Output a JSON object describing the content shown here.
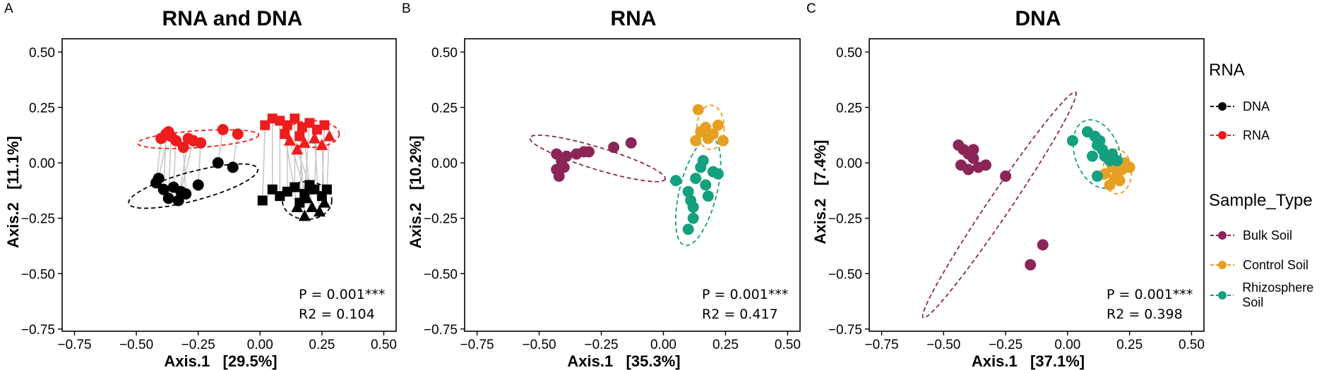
{
  "colors": {
    "dna": "#000000",
    "rna": "#ee1c1c",
    "bulk": "#8b2558",
    "control": "#e5a024",
    "rhizo": "#14a07e",
    "connector": "#c8c8c8"
  },
  "legend": {
    "group_title": "RNA",
    "group_items": [
      {
        "label": "DNA",
        "color_key": "dna"
      },
      {
        "label": "RNA",
        "color_key": "rna"
      }
    ],
    "sample_title": "Sample_Type",
    "sample_items": [
      {
        "label": "Bulk Soil",
        "color_key": "bulk"
      },
      {
        "label": "Control Soil",
        "color_key": "control"
      },
      {
        "label": "Rhizosphere Soil",
        "color_key": "rhizo"
      }
    ]
  },
  "chart_data": [
    {
      "panel_label": "A",
      "type": "scatter",
      "title": "RNA and DNA",
      "xlabel": "Axis.1   [29.5%]",
      "ylabel": "Axis.2   [11.1%]",
      "xlim": [
        -0.8,
        0.55
      ],
      "ylim": [
        -0.76,
        0.56
      ],
      "xticks": [
        -0.75,
        -0.5,
        -0.25,
        0.0,
        0.25,
        0.5
      ],
      "yticks": [
        -0.75,
        -0.5,
        -0.25,
        0.0,
        0.25,
        0.5
      ],
      "tick_labels": [
        "−0.75",
        "−0.50",
        "−0.25",
        "0.00",
        "0.25",
        "0.50"
      ],
      "stat_p": "P = 0.001***",
      "stat_r2": "R2 = 0.104",
      "series": [
        {
          "name": "DNA",
          "color_key": "dna",
          "shape": "circle",
          "points": [
            [
              -0.42,
              -0.09
            ],
            [
              -0.39,
              -0.12
            ],
            [
              -0.37,
              -0.16
            ],
            [
              -0.35,
              -0.11
            ],
            [
              -0.33,
              -0.17
            ],
            [
              -0.32,
              -0.13
            ],
            [
              -0.25,
              -0.1
            ],
            [
              -0.41,
              -0.07
            ],
            [
              -0.3,
              -0.14
            ],
            [
              -0.17,
              0.0
            ],
            [
              -0.11,
              -0.02
            ]
          ]
        },
        {
          "name": "RNA",
          "color_key": "rna",
          "shape": "circle",
          "points": [
            [
              -0.4,
              0.11
            ],
            [
              -0.38,
              0.13
            ],
            [
              -0.36,
              0.12
            ],
            [
              -0.34,
              0.1
            ],
            [
              -0.29,
              0.11
            ],
            [
              -0.27,
              0.1
            ],
            [
              -0.24,
              0.09
            ],
            [
              -0.15,
              0.15
            ],
            [
              -0.09,
              0.13
            ],
            [
              -0.37,
              0.14
            ],
            [
              -0.31,
              0.07
            ]
          ]
        },
        {
          "name": "DNA",
          "color_key": "dna",
          "shape": "square",
          "points": [
            [
              0.01,
              -0.17
            ],
            [
              0.05,
              -0.12
            ],
            [
              0.08,
              -0.15
            ],
            [
              0.11,
              -0.13
            ],
            [
              0.14,
              -0.11
            ],
            [
              0.18,
              -0.14
            ],
            [
              0.22,
              -0.12
            ],
            [
              0.25,
              -0.15
            ],
            [
              0.27,
              -0.12
            ],
            [
              0.16,
              -0.18
            ],
            [
              0.2,
              -0.1
            ]
          ]
        },
        {
          "name": "DNA",
          "color_key": "dna",
          "shape": "triangle",
          "points": [
            [
              0.15,
              -0.2
            ],
            [
              0.18,
              -0.24
            ],
            [
              0.21,
              -0.2
            ],
            [
              0.24,
              -0.22
            ],
            [
              0.26,
              -0.18
            ],
            [
              0.19,
              -0.16
            ]
          ]
        },
        {
          "name": "RNA",
          "color_key": "rna",
          "shape": "square",
          "points": [
            [
              0.05,
              0.2
            ],
            [
              0.08,
              0.19
            ],
            [
              0.11,
              0.17
            ],
            [
              0.14,
              0.2
            ],
            [
              0.17,
              0.16
            ],
            [
              0.2,
              0.18
            ],
            [
              0.23,
              0.15
            ],
            [
              0.26,
              0.17
            ],
            [
              0.1,
              0.13
            ],
            [
              0.16,
              0.12
            ],
            [
              0.02,
              0.17
            ]
          ]
        },
        {
          "name": "RNA",
          "color_key": "rna",
          "shape": "triangle",
          "points": [
            [
              0.12,
              0.1
            ],
            [
              0.15,
              0.06
            ],
            [
              0.18,
              0.09
            ],
            [
              0.22,
              0.11
            ],
            [
              0.25,
              0.08
            ],
            [
              0.28,
              0.12
            ]
          ]
        }
      ],
      "connectors": [
        [
          [
            -0.4,
            0.11
          ],
          [
            -0.42,
            -0.09
          ]
        ],
        [
          [
            -0.38,
            0.13
          ],
          [
            -0.39,
            -0.12
          ]
        ],
        [
          [
            -0.36,
            0.12
          ],
          [
            -0.37,
            -0.16
          ]
        ],
        [
          [
            -0.34,
            0.1
          ],
          [
            -0.35,
            -0.11
          ]
        ],
        [
          [
            -0.29,
            0.11
          ],
          [
            -0.33,
            -0.17
          ]
        ],
        [
          [
            -0.27,
            0.1
          ],
          [
            -0.32,
            -0.13
          ]
        ],
        [
          [
            -0.24,
            0.09
          ],
          [
            -0.25,
            -0.1
          ]
        ],
        [
          [
            -0.15,
            0.15
          ],
          [
            -0.17,
            0.0
          ]
        ],
        [
          [
            -0.09,
            0.13
          ],
          [
            -0.11,
            -0.02
          ]
        ],
        [
          [
            -0.37,
            0.14
          ],
          [
            -0.41,
            -0.07
          ]
        ],
        [
          [
            -0.31,
            0.07
          ],
          [
            -0.3,
            -0.14
          ]
        ],
        [
          [
            0.05,
            0.2
          ],
          [
            0.05,
            -0.12
          ]
        ],
        [
          [
            0.08,
            0.19
          ],
          [
            0.08,
            -0.15
          ]
        ],
        [
          [
            0.11,
            0.17
          ],
          [
            0.11,
            -0.13
          ]
        ],
        [
          [
            0.14,
            0.2
          ],
          [
            0.14,
            -0.11
          ]
        ],
        [
          [
            0.17,
            0.16
          ],
          [
            0.16,
            -0.18
          ]
        ],
        [
          [
            0.2,
            0.18
          ],
          [
            0.18,
            -0.14
          ]
        ],
        [
          [
            0.23,
            0.15
          ],
          [
            0.22,
            -0.12
          ]
        ],
        [
          [
            0.26,
            0.17
          ],
          [
            0.25,
            -0.15
          ]
        ],
        [
          [
            0.1,
            0.13
          ],
          [
            0.15,
            -0.2
          ]
        ],
        [
          [
            0.16,
            0.12
          ],
          [
            0.18,
            -0.24
          ]
        ],
        [
          [
            0.02,
            0.17
          ],
          [
            0.01,
            -0.17
          ]
        ],
        [
          [
            0.12,
            0.1
          ],
          [
            0.19,
            -0.16
          ]
        ],
        [
          [
            0.15,
            0.06
          ],
          [
            0.2,
            -0.1
          ]
        ],
        [
          [
            0.18,
            0.09
          ],
          [
            0.21,
            -0.2
          ]
        ],
        [
          [
            0.22,
            0.11
          ],
          [
            0.24,
            -0.22
          ]
        ],
        [
          [
            0.25,
            0.08
          ],
          [
            0.26,
            -0.18
          ]
        ],
        [
          [
            0.28,
            0.12
          ],
          [
            0.27,
            -0.12
          ]
        ]
      ],
      "ellipses": [
        {
          "color_key": "dna",
          "cx": -0.27,
          "cy": -0.105,
          "rx": 0.27,
          "ry": 0.065,
          "angle": 15
        },
        {
          "color_key": "rna",
          "cx": -0.25,
          "cy": 0.107,
          "rx": 0.245,
          "ry": 0.038,
          "angle": 4
        },
        {
          "color_key": "dna",
          "cx": 0.19,
          "cy": -0.17,
          "rx": 0.1,
          "ry": 0.085,
          "angle": 0
        },
        {
          "color_key": "rna",
          "cx": 0.21,
          "cy": 0.13,
          "rx": 0.11,
          "ry": 0.06,
          "angle": 0
        }
      ]
    },
    {
      "panel_label": "B",
      "type": "scatter",
      "title": "RNA",
      "xlabel": "Axis.1   [35.3%]",
      "ylabel": "Axis.2   [10.2%]",
      "xlim": [
        -0.8,
        0.55
      ],
      "ylim": [
        -0.76,
        0.56
      ],
      "xticks": [
        -0.75,
        -0.5,
        -0.25,
        0.0,
        0.25,
        0.5
      ],
      "yticks": [
        -0.75,
        -0.5,
        -0.25,
        0.0,
        0.25,
        0.5
      ],
      "tick_labels": [
        "−0.75",
        "−0.50",
        "−0.25",
        "0.00",
        "0.25",
        "0.50"
      ],
      "stat_p": "P = 0.001***",
      "stat_r2": "R2 = 0.417",
      "series": [
        {
          "name": "Bulk Soil",
          "color_key": "bulk",
          "shape": "circle",
          "points": [
            [
              -0.43,
              0.04
            ],
            [
              -0.41,
              0.01
            ],
            [
              -0.4,
              -0.02
            ],
            [
              -0.42,
              -0.06
            ],
            [
              -0.39,
              0.03
            ],
            [
              -0.35,
              0.04
            ],
            [
              -0.32,
              0.05
            ],
            [
              -0.3,
              0.05
            ],
            [
              -0.2,
              0.07
            ],
            [
              -0.13,
              0.09
            ],
            [
              -0.43,
              -0.03
            ]
          ]
        },
        {
          "name": "Control Soil",
          "color_key": "control",
          "shape": "circle",
          "points": [
            [
              0.14,
              0.24
            ],
            [
              0.17,
              0.16
            ],
            [
              0.2,
              0.13
            ],
            [
              0.22,
              0.17
            ],
            [
              0.24,
              0.1
            ],
            [
              0.15,
              0.14
            ],
            [
              0.18,
              0.11
            ],
            [
              0.13,
              0.1
            ]
          ]
        },
        {
          "name": "Rhizosphere Soil",
          "color_key": "rhizo",
          "shape": "circle",
          "points": [
            [
              0.05,
              -0.08
            ],
            [
              0.1,
              -0.13
            ],
            [
              0.12,
              -0.2
            ],
            [
              0.13,
              -0.07
            ],
            [
              0.15,
              -0.02
            ],
            [
              0.17,
              -0.1
            ],
            [
              0.18,
              -0.15
            ],
            [
              0.2,
              -0.04
            ],
            [
              0.22,
              -0.05
            ],
            [
              0.1,
              -0.3
            ],
            [
              0.12,
              -0.25
            ],
            [
              0.16,
              0.01
            ],
            [
              0.11,
              -0.17
            ]
          ]
        }
      ],
      "ellipses": [
        {
          "color_key": "bulk",
          "cx": -0.265,
          "cy": 0.02,
          "rx": 0.285,
          "ry": 0.05,
          "angle": -17
        },
        {
          "color_key": "control",
          "cx": 0.19,
          "cy": 0.16,
          "rx": 0.055,
          "ry": 0.1,
          "angle": 0
        },
        {
          "color_key": "rhizo",
          "cx": 0.14,
          "cy": -0.13,
          "rx": 0.075,
          "ry": 0.25,
          "angle": -14
        }
      ]
    },
    {
      "panel_label": "C",
      "type": "scatter",
      "title": "DNA",
      "xlabel": "Axis.1   [37.1%]",
      "ylabel": "Axis.2   [7.4%]",
      "xlim": [
        -0.8,
        0.55
      ],
      "ylim": [
        -0.76,
        0.56
      ],
      "xticks": [
        -0.75,
        -0.5,
        -0.25,
        0.0,
        0.25,
        0.5
      ],
      "yticks": [
        -0.75,
        -0.5,
        -0.25,
        0.0,
        0.25,
        0.5
      ],
      "tick_labels": [
        "−0.75",
        "−0.50",
        "−0.25",
        "0.00",
        "0.25",
        "0.50"
      ],
      "stat_p": "P = 0.001***",
      "stat_r2": "R2 = 0.398",
      "series": [
        {
          "name": "Bulk Soil",
          "color_key": "bulk",
          "shape": "circle",
          "points": [
            [
              -0.44,
              0.08
            ],
            [
              -0.42,
              0.06
            ],
            [
              -0.4,
              0.04
            ],
            [
              -0.38,
              0.02
            ],
            [
              -0.43,
              -0.01
            ],
            [
              -0.4,
              -0.03
            ],
            [
              -0.36,
              -0.02
            ],
            [
              -0.33,
              -0.01
            ],
            [
              -0.25,
              -0.06
            ],
            [
              -0.1,
              -0.37
            ],
            [
              -0.15,
              -0.46
            ],
            [
              -0.38,
              0.06
            ]
          ]
        },
        {
          "name": "Control Soil",
          "color_key": "control",
          "shape": "circle",
          "points": [
            [
              0.15,
              -0.05
            ],
            [
              0.18,
              -0.02
            ],
            [
              0.2,
              -0.06
            ],
            [
              0.22,
              -0.03
            ],
            [
              0.25,
              -0.02
            ],
            [
              0.17,
              -0.1
            ],
            [
              0.19,
              -0.07
            ],
            [
              0.23,
              0.0
            ],
            [
              0.21,
              -0.08
            ]
          ]
        },
        {
          "name": "Rhizosphere Soil",
          "color_key": "rhizo",
          "shape": "circle",
          "points": [
            [
              0.02,
              0.1
            ],
            [
              0.08,
              0.14
            ],
            [
              0.11,
              0.12
            ],
            [
              0.12,
              0.08
            ],
            [
              0.14,
              0.06
            ],
            [
              0.15,
              0.03
            ],
            [
              0.17,
              0.01
            ],
            [
              0.2,
              0.01
            ],
            [
              0.1,
              0.03
            ],
            [
              0.12,
              -0.06
            ],
            [
              0.18,
              0.04
            ],
            [
              0.13,
              0.1
            ]
          ]
        }
      ],
      "ellipses": [
        {
          "color_key": "bulk",
          "cx": -0.275,
          "cy": -0.19,
          "rx": 0.55,
          "ry": 0.05,
          "angle": 56
        },
        {
          "color_key": "control",
          "cx": 0.2,
          "cy": -0.04,
          "rx": 0.058,
          "ry": 0.1,
          "angle": 0
        },
        {
          "color_key": "rhizo",
          "cx": 0.12,
          "cy": 0.04,
          "rx": 0.09,
          "ry": 0.16,
          "angle": 20
        }
      ]
    }
  ]
}
